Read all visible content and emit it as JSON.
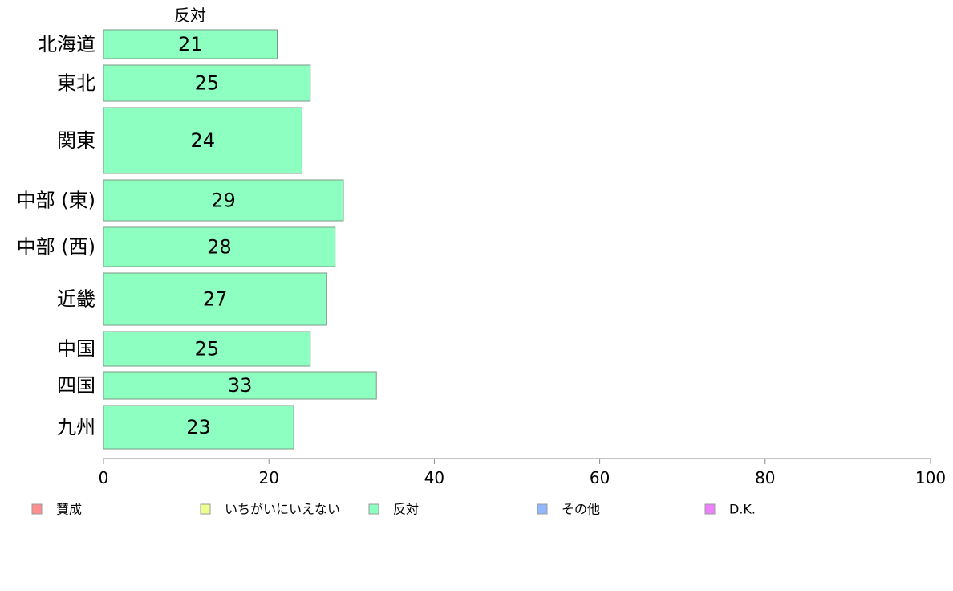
{
  "chart_data": {
    "type": "bar",
    "orientation": "horizontal",
    "series_header": "反対",
    "categories": [
      "北海道",
      "東北",
      "関東",
      "中部 (東)",
      "中部 (西)",
      "近畿",
      "中国",
      "四国",
      "九州"
    ],
    "series": [
      {
        "name": "反対",
        "values": [
          21,
          25,
          24,
          29,
          28,
          27,
          25,
          33,
          23
        ],
        "color": "#8dffc0"
      }
    ],
    "xlim": [
      0,
      100
    ],
    "xticks": [
      0,
      20,
      40,
      60,
      80,
      100
    ],
    "grid": false,
    "legend": {
      "placement": "bottom",
      "items": [
        {
          "label": "賛成",
          "color": "#ff8f8f"
        },
        {
          "label": "いちがいにいえない",
          "color": "#eeff8f"
        },
        {
          "label": "反対",
          "color": "#8dffc0"
        },
        {
          "label": "その他",
          "color": "#8fb8ff"
        },
        {
          "label": "D.K.",
          "color": "#ee80ff"
        }
      ]
    },
    "colors": {
      "bar_stroke": "#7a9a86",
      "axis": "#888888"
    }
  }
}
